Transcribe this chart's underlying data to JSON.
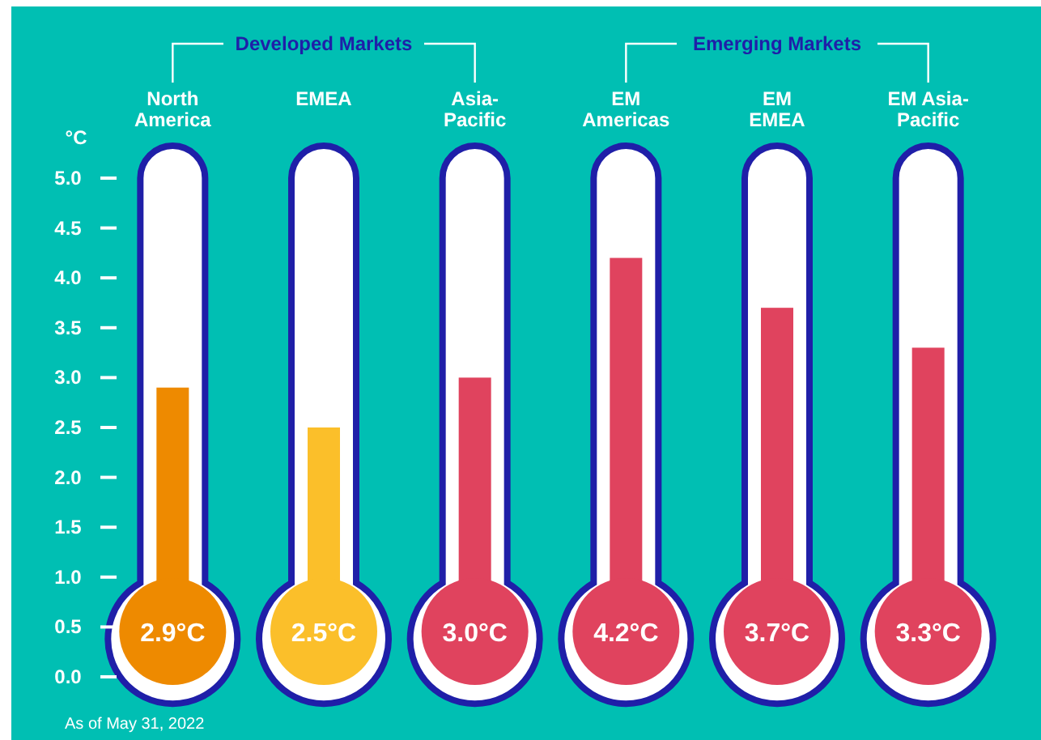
{
  "chart_data": {
    "type": "bar",
    "ylabel": "°C",
    "categories": [
      "North America",
      "EMEA",
      "Asia-Pacific",
      "EM Americas",
      "EM EMEA",
      "EM Asia-Pacific"
    ],
    "values": [
      2.9,
      2.5,
      3.0,
      4.2,
      3.7,
      3.3
    ],
    "colors": [
      "#ee8a00",
      "#fbbf2a",
      "#e0435e",
      "#e0435e",
      "#e0435e",
      "#e0435e"
    ],
    "value_labels": [
      "2.9°C",
      "2.5°C",
      "3.0°C",
      "4.2°C",
      "3.7°C",
      "3.3°C"
    ],
    "ylim": [
      0,
      5.0
    ],
    "yticks": [
      {
        "value": 0,
        "label": "0.0"
      },
      0.5,
      {
        "value": 1,
        "label": "1.0"
      },
      1.5,
      {
        "value": 2,
        "label": "2.0"
      },
      2.5,
      {
        "value": 3,
        "label": "3.0"
      },
      3.5,
      {
        "value": 4,
        "label": "4.0"
      },
      4.5,
      {
        "value": 5,
        "label": "5.0"
      }
    ],
    "annotations": [
      "Developed Markets",
      "Emerging Markets",
      "As of May 31, 2022"
    ]
  }
}
